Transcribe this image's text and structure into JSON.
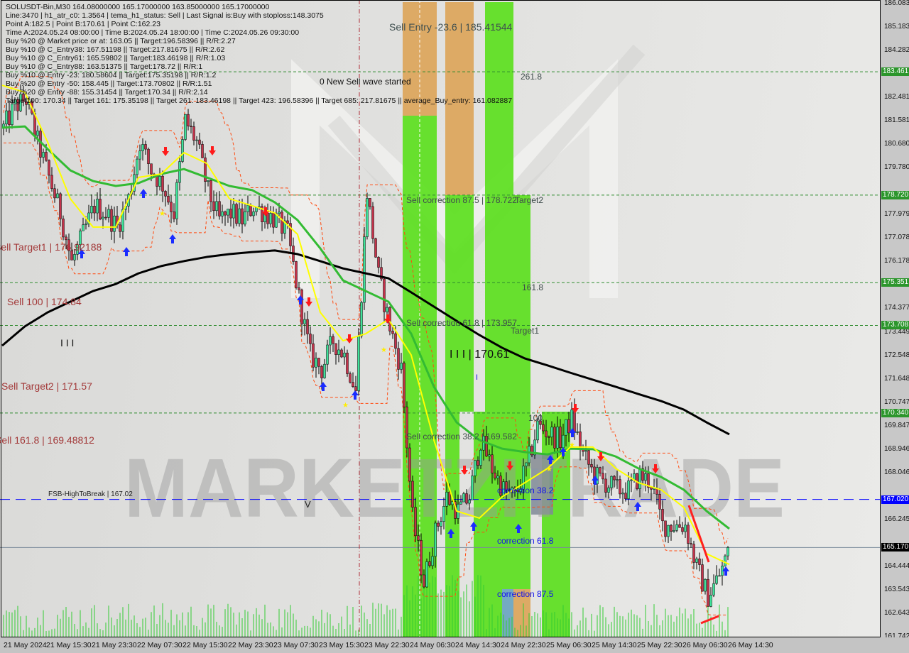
{
  "info_lines": [
    "SOLUSDT-Bin,M30  164.08000000 165.17000000 163.85000000 165.17000000",
    "Line:3470 | h1_atr_c0: 1.3564 | tema_h1_status: Sell | Last Signal is:Buy with stoploss:148.3075",
    "Point A:182.5 | Point B:170.61 | Point C:162.23",
    "Time A:2024.05.24 08:00:00 | Time B:2024.05.24 18:00:00 | Time C:2024.05.26 09:30:00",
    "Buy %20 @ Market price or at: 163.05 || Target:196.58396 || R/R:2.27",
    "Buy %10 @ C_Entry38: 167.51198 || Target:217.81675 || R/R:2.62",
    "Buy %10 @ C_Entry61: 165.59802 || Target:183.46198 || R/R:1.03",
    "Buy %10 @ C_Entry88: 163.51375 || Target:178.72 || R/R:1",
    "Buy %10 @ Entry -23: 180.58604 || Target:175.35198 || R/R:1.2",
    "Buy %20 @ Entry -50: 158.445 || Target:173.70802 || R/R:1.51",
    "Buy %20 @ Entry -88: 155.31454 || Target:170.34 || R/R:2.14",
    "Target100: 170.34 || Target 161: 175.35198 || Target 261: 183.46198 || Target 423: 196.58396 || Target 685: 217.81675 || average_Buy_entry: 161.082887"
  ],
  "annotations": {
    "sell_entry": "Sell Entry -23.6 | 185.41544",
    "fib_261": "261.8",
    "new_sell_wave": "0 New Sell wave started",
    "sell_corr_875": "Sell correction 87.5 | 178.722",
    "target2": "Target2",
    "fib_161": "161.8",
    "sell_corr_618": "Sell correction 61.8 | 173.957",
    "target1": "Target1",
    "point_b": "I I I | 170.61",
    "b_marker": "I",
    "fib_100": "100",
    "sell_corr_382": "Sell correction 38.2 | 169.582",
    "corr_382": "correction 38.2",
    "corr_618": "correction 61.8",
    "corr_875": "correction 87.5",
    "sell_target1": "Sell Target1 | 176.92188",
    "sell_100": "Sell 100 | 174.84",
    "left_marker": "I I I",
    "sell_target2": "Sell Target2 | 171.57",
    "sell_1618": "Sell 161.8 | 169.48812",
    "fsb": "FSB-HighToBreak  |  167.02",
    "v_marker": "V"
  },
  "watermark": "MARKETZITRADE",
  "chart_data": {
    "type": "candlestick",
    "symbol": "SOLUSDT-Bin",
    "timeframe": "M30",
    "ylim": [
      161.742,
      186.083
    ],
    "y_ticks": [
      "186.083",
      "185.183",
      "184.282",
      "182.481",
      "181.581",
      "180.680",
      "179.780",
      "177.979",
      "177.078",
      "176.178",
      "174.377",
      "173.449",
      "172.548",
      "171.648",
      "170.747",
      "169.847",
      "168.946",
      "168.046",
      "166.245",
      "164.444",
      "163.543",
      "162.643",
      "161.742"
    ],
    "x_ticks": [
      "21 May 2024",
      "21 May 15:30",
      "21 May 23:30",
      "22 May 07:30",
      "22 May 15:30",
      "22 May 23:30",
      "23 May 07:30",
      "23 May 15:30",
      "23 May 22:30",
      "24 May 06:30",
      "24 May 14:30",
      "24 May 22:30",
      "25 May 06:30",
      "25 May 14:30",
      "25 May 22:30",
      "26 May 06:30",
      "26 May 14:30"
    ],
    "close_path": {
      "start": "2024-05-21 06:30",
      "step_hours": 2,
      "values": [
        181.31,
        182.13,
        182.4,
        180.76,
        179.4,
        178.03,
        176.12,
        177.21,
        178.31,
        178.03,
        177.49,
        178.58,
        180.76,
        179.67,
        179.12,
        178.03,
        181.58,
        180.76,
        178.85,
        177.76,
        178.03,
        177.76,
        178.31,
        178.03,
        177.76,
        177.21,
        174.76,
        172.57,
        172.03,
        173.12,
        172.57,
        171.21,
        178.85,
        175.58,
        173.67,
        172.03,
        166.3,
        163.84,
        165.75,
        167.12,
        166.57,
        167.12,
        169.3,
        168.21,
        167.39,
        167.12,
        168.21,
        169.85,
        169.57,
        169.3,
        170.12,
        168.75,
        167.94,
        167.66,
        167.39,
        167.39,
        167.94,
        167.66,
        166.03,
        166.03,
        166.03,
        164.39,
        163.3,
        164.12,
        165.17
      ]
    },
    "moving_averages": [
      {
        "color": "#000000",
        "start": "2024-05-21 06:30",
        "step_hours": 4,
        "values": [
          172.93,
          173.67,
          174.21,
          174.62,
          175.03,
          175.3,
          175.71,
          175.99,
          176.18,
          176.34,
          176.45,
          176.53,
          176.59,
          176.45,
          176.18,
          175.9,
          175.71,
          175.52,
          174.98,
          174.43,
          173.88,
          173.34,
          172.85,
          172.44,
          172.17,
          171.89,
          171.62,
          171.35,
          171.07,
          170.8,
          170.47,
          169.98,
          169.52
        ]
      },
      {
        "color": "#33bb33",
        "start": "2024-05-21 06:30",
        "step_hours": 4,
        "values": [
          181.31,
          181.36,
          180.49,
          179.67,
          179.26,
          179.07,
          179.18,
          179.53,
          179.72,
          179.4,
          179.07,
          178.91,
          178.44,
          177.76,
          176.67,
          175.44,
          175.03,
          174.62,
          173.39,
          171.35,
          169.98,
          169.3,
          168.97,
          168.84,
          168.75,
          168.97,
          168.95,
          168.67,
          168.21,
          167.88,
          167.39,
          166.57,
          165.89
        ]
      },
      {
        "color": "#ffff00",
        "start": "2024-05-21 06:30",
        "step_hours": 4,
        "values": [
          182.94,
          182.67,
          180.76,
          178.58,
          177.49,
          177.49,
          179.4,
          179.53,
          180.35,
          179.94,
          178.58,
          178.31,
          178.03,
          177.21,
          174.21,
          173.12,
          173.39,
          173.94,
          172.57,
          169.3,
          166.57,
          166.3,
          167.12,
          167.66,
          168.21,
          169.03,
          169.03,
          168.21,
          167.66,
          167.39,
          166.71,
          164.93,
          164.52
        ]
      }
    ],
    "levels": [
      {
        "price": 183.461,
        "label": "183.461",
        "color": "#2e8b2e",
        "style": "dashed"
      },
      {
        "price": 178.72,
        "label": "178.720",
        "color": "#2e8b2e",
        "style": "dashed"
      },
      {
        "price": 175.351,
        "label": "175.351",
        "color": "#2e8b2e",
        "style": "dashed"
      },
      {
        "price": 173.708,
        "label": "173.708",
        "color": "#2e8b2e",
        "style": "dashed"
      },
      {
        "price": 170.34,
        "label": "170.340",
        "color": "#2e8b2e",
        "style": "dashed"
      },
      {
        "price": 167.02,
        "label": "167.020",
        "color": "#0000ff",
        "style": "long-dash"
      },
      {
        "price": 165.17,
        "label": "165.170",
        "color": "#000000",
        "style": "solid-bid"
      }
    ],
    "colors": {
      "bull": "#3de39a",
      "bear": "#c4324a",
      "volume": "#33cc33",
      "zone_green": "#5ce01e",
      "zone_orange": "#dca55a",
      "envelope": "#ff4a10",
      "buy_arrow": "#1a2cff",
      "sell_arrow": "#ff1a1a"
    }
  }
}
